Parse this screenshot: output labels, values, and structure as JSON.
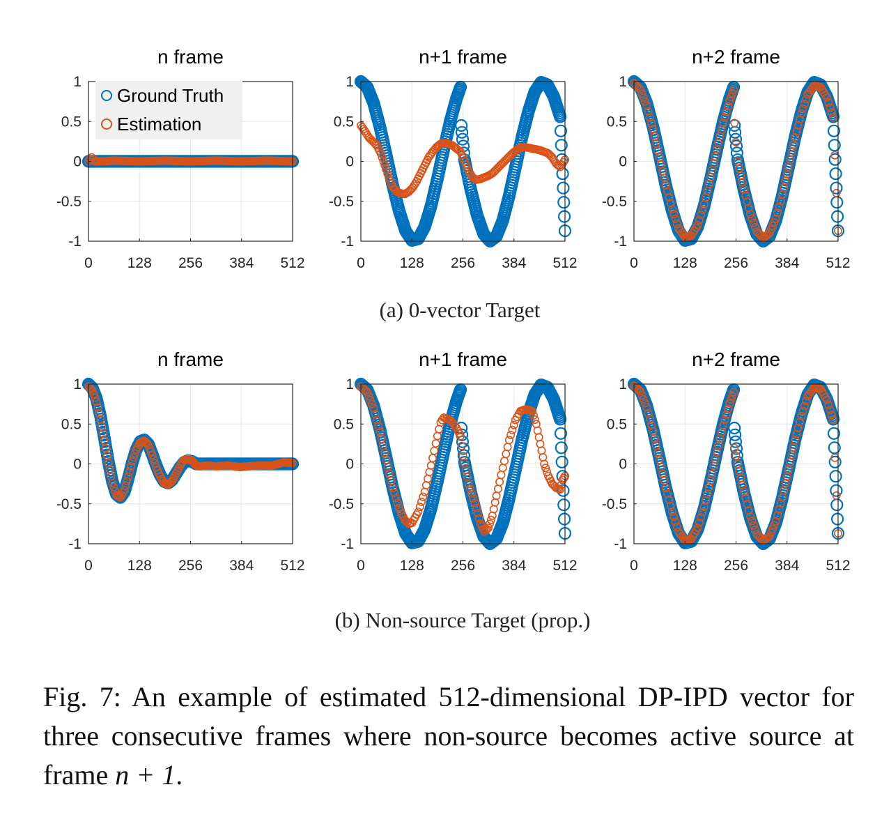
{
  "figure": {
    "caption_prefix": "Fig. 7:",
    "caption_text": "An example of estimated 512-dimensional DP-IPD vector for three consecutive frames where non-source becomes active source at frame",
    "caption_math": "n + 1",
    "caption_end": ".",
    "subcaptions": [
      "(a) 0-vector Target",
      "(b) Non-source Target (prop.)"
    ]
  },
  "legend": {
    "position": "top-left of first panel",
    "entries": [
      {
        "label": "Ground Truth",
        "color": "#0072BD",
        "marker": "open-circle"
      },
      {
        "label": "Estimation",
        "color": "#D95319",
        "marker": "open-circle"
      }
    ]
  },
  "colors": {
    "ground_truth": "#0072BD",
    "estimation": "#D95319",
    "grid": "#e6e6e6",
    "axis": "#262626"
  },
  "chart_data": [
    {
      "type": "scatter",
      "row": "a",
      "title": "n frame",
      "xlim": [
        0,
        512
      ],
      "ylim": [
        -1,
        1
      ],
      "xticks": [
        0,
        128,
        256,
        384,
        512
      ],
      "xtick_labels": [
        "0",
        "128",
        "256",
        "384",
        "512"
      ],
      "yticks": [
        1,
        0.5,
        0,
        -0.5,
        -1
      ],
      "ytick_labels": [
        "1",
        "0.5",
        "0",
        "-0.5",
        "-1"
      ],
      "grid": true,
      "series": [
        {
          "name": "Ground Truth",
          "x": [
            0,
            512
          ],
          "y": [
            0,
            0
          ]
        },
        {
          "name": "Estimation",
          "x": [
            0,
            8,
            16,
            32,
            64,
            128,
            192,
            256,
            320,
            384,
            448,
            512
          ],
          "y": [
            0,
            0.05,
            0.0,
            0.0,
            0.01,
            0.0,
            0.01,
            0.0,
            0.01,
            0.0,
            0.01,
            0.0
          ]
        }
      ]
    },
    {
      "type": "scatter",
      "row": "a",
      "title": "n+1 frame",
      "xlim": [
        0,
        512
      ],
      "ylim": [
        -1,
        1
      ],
      "xticks": [
        0,
        128,
        256,
        384,
        512
      ],
      "xtick_labels": [
        "0",
        "128",
        "256",
        "384",
        "512"
      ],
      "yticks": [
        1,
        0.5,
        0,
        -0.5,
        -1
      ],
      "ytick_labels": [
        "1",
        "0.5",
        "0",
        "-0.5",
        "-1"
      ],
      "grid": true,
      "series": [
        {
          "name": "Ground Truth",
          "x": [
            0,
            16,
            32,
            48,
            64,
            80,
            96,
            112,
            128,
            144,
            160,
            176,
            192,
            208,
            224,
            240,
            250,
            252,
            260,
            276,
            292,
            308,
            324,
            340,
            356,
            372,
            388,
            404,
            420,
            436,
            452,
            468,
            484,
            500,
            512
          ],
          "y": [
            1.0,
            0.93,
            0.73,
            0.43,
            0.07,
            -0.3,
            -0.62,
            -0.87,
            -0.99,
            -0.97,
            -0.82,
            -0.56,
            -0.22,
            0.15,
            0.5,
            0.79,
            0.93,
            0.45,
            0.02,
            -0.36,
            -0.68,
            -0.91,
            -1.0,
            -0.94,
            -0.74,
            -0.43,
            -0.07,
            0.3,
            0.62,
            0.87,
            0.99,
            0.96,
            0.81,
            0.56,
            -0.87
          ]
        },
        {
          "name": "Estimation",
          "x": [
            0,
            10,
            20,
            30,
            40,
            50,
            60,
            70,
            80,
            90,
            100,
            110,
            120,
            130,
            140,
            150,
            160,
            170,
            180,
            190,
            200,
            210,
            220,
            230,
            240,
            250,
            260,
            270,
            280,
            290,
            300,
            310,
            320,
            330,
            340,
            350,
            360,
            370,
            380,
            390,
            400,
            410,
            420,
            430,
            440,
            450,
            460,
            470,
            480,
            490,
            500,
            512
          ],
          "y": [
            0.45,
            0.38,
            0.3,
            0.25,
            0.2,
            0.1,
            -0.05,
            -0.2,
            -0.32,
            -0.38,
            -0.4,
            -0.41,
            -0.38,
            -0.33,
            -0.25,
            -0.15,
            -0.05,
            0.05,
            0.12,
            0.18,
            0.22,
            0.23,
            0.22,
            0.2,
            0.16,
            0.12,
            0.0,
            -0.12,
            -0.2,
            -0.23,
            -0.22,
            -0.2,
            -0.18,
            -0.15,
            -0.1,
            -0.05,
            0.0,
            0.05,
            0.1,
            0.14,
            0.17,
            0.18,
            0.17,
            0.16,
            0.15,
            0.14,
            0.12,
            0.1,
            0.05,
            -0.03,
            -0.07,
            0.02
          ]
        }
      ]
    },
    {
      "type": "scatter",
      "row": "a",
      "title": "n+2 frame",
      "xlim": [
        0,
        512
      ],
      "ylim": [
        -1,
        1
      ],
      "xticks": [
        0,
        128,
        256,
        384,
        512
      ],
      "xtick_labels": [
        "0",
        "128",
        "256",
        "384",
        "512"
      ],
      "yticks": [
        1,
        0.5,
        0,
        -0.5,
        -1
      ],
      "ytick_labels": [
        "1",
        "0.5",
        "0",
        "-0.5",
        "-1"
      ],
      "grid": true,
      "series": [
        {
          "name": "Ground Truth",
          "x": [
            0,
            16,
            32,
            48,
            64,
            80,
            96,
            112,
            128,
            144,
            160,
            176,
            192,
            208,
            224,
            240,
            250,
            252,
            260,
            276,
            292,
            308,
            324,
            340,
            356,
            372,
            388,
            404,
            420,
            436,
            452,
            468,
            484,
            500,
            512
          ],
          "y": [
            1.0,
            0.93,
            0.73,
            0.43,
            0.07,
            -0.3,
            -0.62,
            -0.87,
            -0.99,
            -0.97,
            -0.82,
            -0.56,
            -0.22,
            0.15,
            0.5,
            0.79,
            0.93,
            0.45,
            0.02,
            -0.36,
            -0.68,
            -0.91,
            -1.0,
            -0.94,
            -0.74,
            -0.43,
            -0.07,
            0.3,
            0.62,
            0.87,
            0.99,
            0.96,
            0.81,
            0.56,
            -0.87
          ]
        },
        {
          "name": "Estimation",
          "x": [
            0,
            16,
            32,
            48,
            64,
            80,
            96,
            112,
            128,
            144,
            160,
            176,
            192,
            208,
            224,
            240,
            250,
            252,
            260,
            276,
            292,
            308,
            324,
            340,
            356,
            372,
            388,
            404,
            420,
            436,
            452,
            468,
            484,
            500,
            512
          ],
          "y": [
            0.98,
            0.9,
            0.7,
            0.4,
            0.05,
            -0.3,
            -0.6,
            -0.84,
            -0.95,
            -0.93,
            -0.8,
            -0.54,
            -0.2,
            0.15,
            0.48,
            0.76,
            0.9,
            0.48,
            0.0,
            -0.35,
            -0.66,
            -0.88,
            -0.96,
            -0.9,
            -0.72,
            -0.42,
            -0.07,
            0.3,
            0.6,
            0.84,
            0.95,
            0.93,
            0.8,
            0.55,
            -0.87
          ]
        }
      ]
    },
    {
      "type": "scatter",
      "row": "b",
      "title": "n frame",
      "xlim": [
        0,
        512
      ],
      "ylim": [
        -1,
        1
      ],
      "xticks": [
        0,
        128,
        256,
        384,
        512
      ],
      "xtick_labels": [
        "0",
        "128",
        "256",
        "384",
        "512"
      ],
      "yticks": [
        1,
        0.5,
        0,
        -0.5,
        -1
      ],
      "ytick_labels": [
        "1",
        "0.5",
        "0",
        "-0.5",
        "-1"
      ],
      "grid": true,
      "series": [
        {
          "name": "Ground Truth",
          "x": [
            0,
            10,
            20,
            30,
            40,
            50,
            60,
            70,
            80,
            90,
            100,
            110,
            120,
            130,
            140,
            150,
            160,
            170,
            180,
            190,
            200,
            210,
            220,
            230,
            240,
            250,
            260,
            270,
            280,
            300,
            350,
            400,
            450,
            512
          ],
          "y": [
            1.0,
            0.95,
            0.82,
            0.6,
            0.32,
            0.03,
            -0.22,
            -0.38,
            -0.42,
            -0.35,
            -0.18,
            0.02,
            0.18,
            0.28,
            0.3,
            0.25,
            0.12,
            -0.02,
            -0.14,
            -0.22,
            -0.24,
            -0.2,
            -0.12,
            -0.04,
            0.02,
            0.04,
            0.03,
            0.0,
            0.0,
            0.0,
            0.0,
            0.0,
            0.0,
            0.0
          ]
        },
        {
          "name": "Estimation",
          "x": [
            0,
            10,
            20,
            30,
            40,
            50,
            60,
            70,
            80,
            90,
            100,
            110,
            120,
            130,
            140,
            150,
            160,
            170,
            180,
            190,
            200,
            210,
            220,
            230,
            240,
            250,
            260,
            270,
            280,
            300,
            320,
            350,
            380,
            400,
            430,
            460,
            490,
            512
          ],
          "y": [
            0.97,
            0.92,
            0.78,
            0.56,
            0.29,
            0.01,
            -0.24,
            -0.39,
            -0.42,
            -0.33,
            -0.16,
            0.03,
            0.18,
            0.27,
            0.29,
            0.24,
            0.11,
            -0.04,
            -0.16,
            -0.24,
            -0.26,
            -0.21,
            -0.12,
            -0.02,
            0.05,
            0.06,
            0.04,
            -0.02,
            -0.03,
            -0.02,
            -0.03,
            -0.02,
            -0.04,
            -0.03,
            -0.02,
            -0.02,
            0.02,
            0.01
          ]
        }
      ]
    },
    {
      "type": "scatter",
      "row": "b",
      "title": "n+1 frame",
      "xlim": [
        0,
        512
      ],
      "ylim": [
        -1,
        1
      ],
      "xticks": [
        0,
        128,
        256,
        384,
        512
      ],
      "xtick_labels": [
        "0",
        "128",
        "256",
        "384",
        "512"
      ],
      "yticks": [
        1,
        0.5,
        0,
        -0.5,
        -1
      ],
      "ytick_labels": [
        "1",
        "0.5",
        "0",
        "-0.5",
        "-1"
      ],
      "grid": true,
      "series": [
        {
          "name": "Ground Truth",
          "x": [
            0,
            16,
            32,
            48,
            64,
            80,
            96,
            112,
            128,
            144,
            160,
            176,
            192,
            208,
            224,
            240,
            250,
            252,
            260,
            276,
            292,
            308,
            324,
            340,
            356,
            372,
            388,
            404,
            420,
            436,
            452,
            468,
            484,
            500,
            512
          ],
          "y": [
            1.0,
            0.93,
            0.73,
            0.43,
            0.07,
            -0.3,
            -0.62,
            -0.87,
            -0.99,
            -0.97,
            -0.82,
            -0.56,
            -0.22,
            0.15,
            0.5,
            0.79,
            0.93,
            0.45,
            0.02,
            -0.36,
            -0.68,
            -0.91,
            -1.0,
            -0.94,
            -0.74,
            -0.43,
            -0.07,
            0.3,
            0.62,
            0.87,
            0.99,
            0.96,
            0.81,
            0.56,
            -0.87
          ]
        },
        {
          "name": "Estimation",
          "x": [
            0,
            16,
            32,
            48,
            64,
            80,
            96,
            110,
            120,
            128,
            144,
            160,
            176,
            192,
            200,
            208,
            224,
            240,
            250,
            256,
            270,
            290,
            300,
            310,
            320,
            330,
            340,
            356,
            372,
            388,
            400,
            410,
            420,
            430,
            440,
            450,
            460,
            470,
            480,
            490,
            500,
            506,
            512
          ],
          "y": [
            0.97,
            0.9,
            0.7,
            0.4,
            0.05,
            -0.3,
            -0.55,
            -0.7,
            -0.75,
            -0.74,
            -0.6,
            -0.35,
            -0.02,
            0.35,
            0.52,
            0.58,
            0.55,
            0.45,
            0.35,
            0.1,
            -0.25,
            -0.55,
            -0.75,
            -0.85,
            -0.8,
            -0.65,
            -0.4,
            -0.05,
            0.3,
            0.55,
            0.66,
            0.68,
            0.68,
            0.66,
            0.5,
            0.25,
            0.0,
            -0.15,
            -0.25,
            -0.3,
            -0.32,
            -0.2,
            -0.15
          ]
        }
      ]
    },
    {
      "type": "scatter",
      "row": "b",
      "title": "n+2 frame",
      "xlim": [
        0,
        512
      ],
      "ylim": [
        -1,
        1
      ],
      "xticks": [
        0,
        128,
        256,
        384,
        512
      ],
      "xtick_labels": [
        "0",
        "128",
        "256",
        "384",
        "512"
      ],
      "yticks": [
        1,
        0.5,
        0,
        -0.5,
        -1
      ],
      "ytick_labels": [
        "1",
        "0.5",
        "0",
        "-0.5",
        "-1"
      ],
      "grid": true,
      "series": [
        {
          "name": "Ground Truth",
          "x": [
            0,
            16,
            32,
            48,
            64,
            80,
            96,
            112,
            128,
            144,
            160,
            176,
            192,
            208,
            224,
            240,
            250,
            252,
            260,
            276,
            292,
            308,
            324,
            340,
            356,
            372,
            388,
            404,
            420,
            436,
            452,
            468,
            484,
            500,
            512
          ],
          "y": [
            1.0,
            0.93,
            0.73,
            0.43,
            0.07,
            -0.3,
            -0.62,
            -0.87,
            -0.99,
            -0.97,
            -0.82,
            -0.56,
            -0.22,
            0.15,
            0.5,
            0.79,
            0.93,
            0.45,
            0.02,
            -0.36,
            -0.68,
            -0.91,
            -1.0,
            -0.94,
            -0.74,
            -0.43,
            -0.07,
            0.3,
            0.62,
            0.87,
            0.99,
            0.96,
            0.81,
            0.56,
            -0.87
          ]
        },
        {
          "name": "Estimation",
          "x": [
            0,
            16,
            32,
            48,
            64,
            80,
            96,
            112,
            128,
            144,
            160,
            176,
            192,
            208,
            224,
            240,
            250,
            252,
            260,
            276,
            292,
            308,
            324,
            340,
            356,
            372,
            388,
            404,
            420,
            436,
            452,
            468,
            484,
            500,
            512
          ],
          "y": [
            0.98,
            0.91,
            0.71,
            0.41,
            0.05,
            -0.3,
            -0.6,
            -0.85,
            -0.96,
            -0.94,
            -0.8,
            -0.54,
            -0.21,
            0.15,
            0.48,
            0.76,
            0.9,
            0.2,
            0.0,
            -0.35,
            -0.66,
            -0.88,
            -0.96,
            -0.91,
            -0.72,
            -0.42,
            -0.07,
            0.3,
            0.6,
            0.85,
            0.96,
            0.94,
            0.8,
            0.55,
            -0.87
          ]
        }
      ]
    }
  ]
}
